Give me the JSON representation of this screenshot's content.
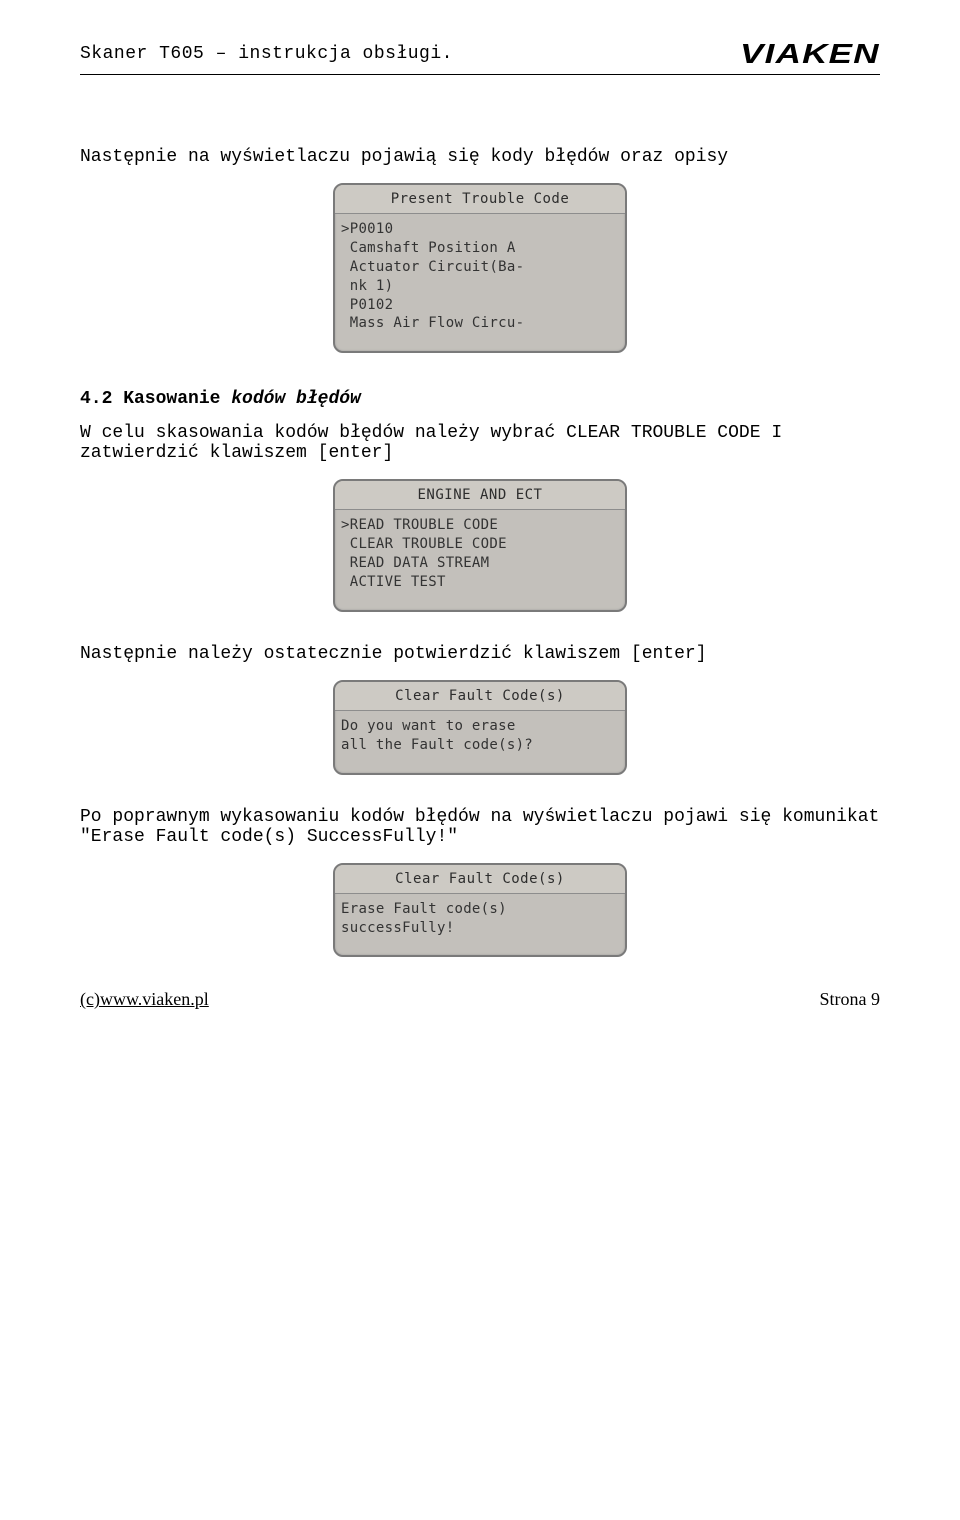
{
  "header": {
    "title": "Skaner T605 – instrukcja obsługi.",
    "logo_text": "VIAKEN"
  },
  "intro_paragraph": "Następnie na wyświetlaczu pojawią się kody błędów oraz opisy",
  "lcd1": {
    "title": "Present Trouble Code",
    "body": ">P0010\n Camshaft Position A\n Actuator Circuit(Ba-\n nk 1)\n P0102\n Mass Air Flow Circu-"
  },
  "section": {
    "number": "4.2 Kasowanie",
    "italic": " kodów błędów",
    "body": "W celu skasowania kodów błędów należy wybrać CLEAR TROUBLE CODE I zatwierdzić klawiszem [enter]"
  },
  "lcd2": {
    "title": "ENGINE AND ECT",
    "body": ">READ TROUBLE CODE\n CLEAR TROUBLE CODE\n READ DATA STREAM\n ACTIVE TEST"
  },
  "confirm_text": "Następnie należy ostatecznie potwierdzić klawiszem [enter]",
  "lcd3": {
    "title": "Clear Fault Code(s)",
    "body": "Do you want to erase\nall the Fault code(s)?"
  },
  "success_text": "Po poprawnym wykasowaniu kodów błędów na wyświetlaczu pojawi się komunikat \"Erase Fault code(s) SuccessFully!\"",
  "lcd4": {
    "title": "Clear Fault Code(s)",
    "body": "Erase Fault code(s)\nsuccessFully!"
  },
  "footer": {
    "left": "(c)www.viaken.pl",
    "right": "Strona 9"
  }
}
